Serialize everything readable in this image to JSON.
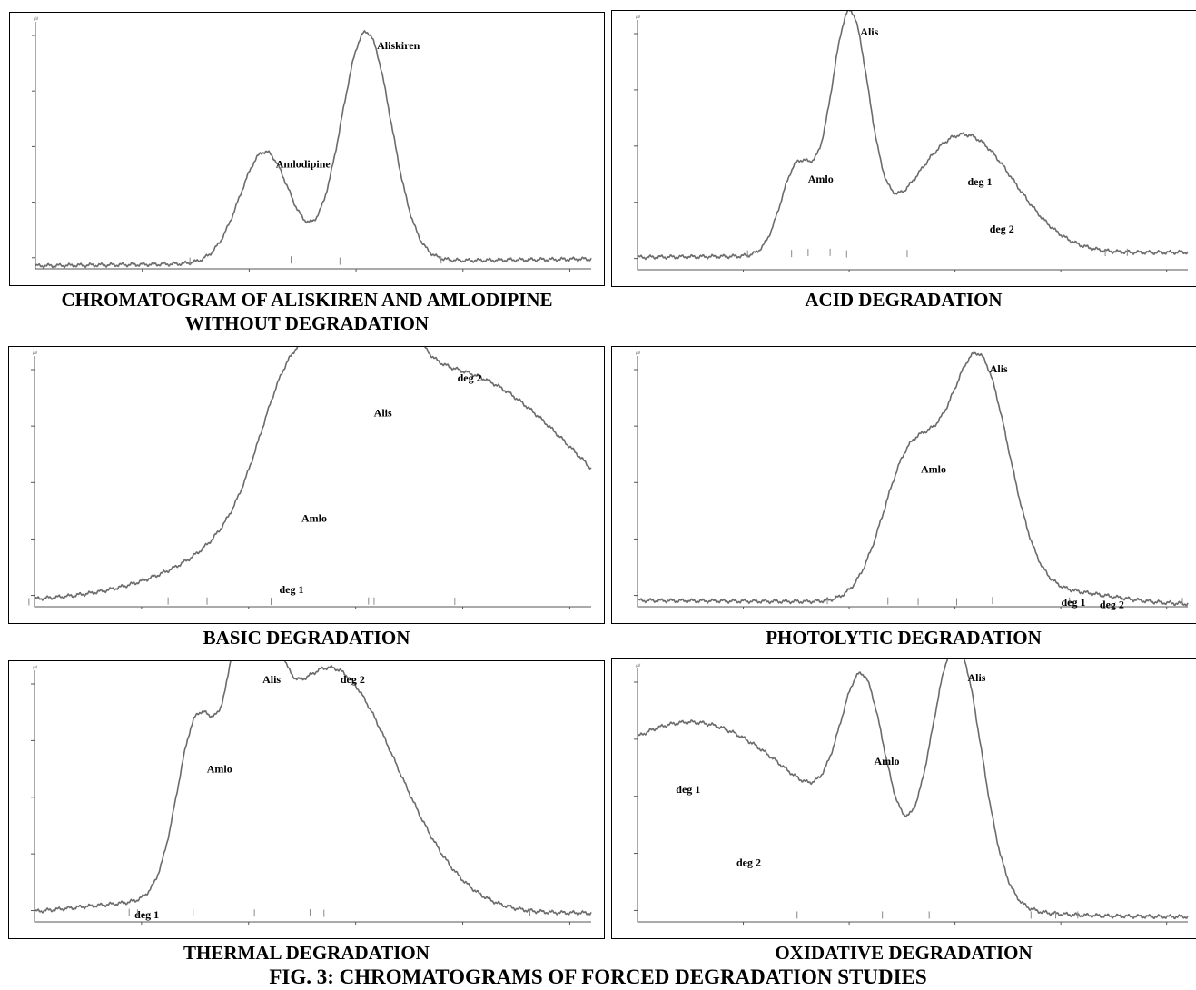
{
  "figure_caption": "FIG. 3: CHROMATOGRAMS OF FORCED DEGRADATION STUDIES",
  "colors": {
    "trace": "#6b6b6b",
    "frame": "#000000"
  },
  "chart_data": [
    {
      "id": "without-degradation",
      "type": "line",
      "caption_lines": [
        "CHROMATOGRAM OF ALISKIREN AND AMLODIPINE",
        "WITHOUT DEGRADATION"
      ],
      "ylabel": "µV",
      "xlabel": "",
      "xlim": [
        0,
        10
      ],
      "ylim": [
        0,
        10
      ],
      "baseline": 0.12,
      "baseline_end": 0.4,
      "peaks": [
        {
          "label": "Amlodipine",
          "x": 4.13,
          "height": 4.5,
          "width": 0.045
        },
        {
          "label": "Aliskiren",
          "x": 5.95,
          "height": 9.3,
          "width": 0.045
        }
      ]
    },
    {
      "id": "acid-degradation",
      "type": "line",
      "caption_lines": [
        "ACID DEGRADATION"
      ],
      "ylabel": "µV",
      "xlabel": "",
      "xlim": [
        0,
        10
      ],
      "ylim": [
        0,
        10
      ],
      "baseline": 0.5,
      "baseline_end": 0.7,
      "peaks": [
        {
          "label": "Amlo",
          "x": 2.9,
          "height": 3.5,
          "width": 0.03
        },
        {
          "label": "Alis",
          "x": 3.85,
          "height": 9.4,
          "width": 0.035
        },
        {
          "label": "deg 1",
          "x": 5.8,
          "height": 3.4,
          "width": 0.09
        },
        {
          "label": "deg 2",
          "x": 6.2,
          "height": 1.5,
          "width": 0.09
        }
      ]
    },
    {
      "id": "basic-degradation",
      "type": "line",
      "caption_lines": [
        "BASIC DEGRADATION"
      ],
      "ylabel": "µV",
      "xlabel": "",
      "xlim": [
        0,
        10
      ],
      "ylim": [
        0,
        10
      ],
      "baseline": 0.2,
      "baseline_end": 0.1,
      "peaks": [
        {
          "label": "deg 1",
          "x": 4.2,
          "height": 0.85,
          "width": 0.06
        },
        {
          "label": "Amlo",
          "x": 4.6,
          "height": 3.7,
          "width": 0.05
        },
        {
          "label": "Alis",
          "x": 5.9,
          "height": 7.9,
          "width": 0.055
        },
        {
          "label": "deg 2",
          "x": 7.4,
          "height": 9.3,
          "width": 0.25
        }
      ]
    },
    {
      "id": "photolytic-degradation",
      "type": "line",
      "caption_lines": [
        "PHOTOLYTIC DEGRADATION"
      ],
      "ylabel": "µV",
      "xlabel": "",
      "xlim": [
        0,
        10
      ],
      "ylim": [
        0,
        10
      ],
      "baseline": 0.25,
      "baseline_end": 0.1,
      "peaks": [
        {
          "label": "Amlo",
          "x": 4.95,
          "height": 5.6,
          "width": 0.05
        },
        {
          "label": "Alis",
          "x": 6.2,
          "height": 9.6,
          "width": 0.055
        },
        {
          "label": "deg 1",
          "x": 7.5,
          "height": 0.3,
          "width": 0.08
        },
        {
          "label": "deg 2",
          "x": 8.2,
          "height": 0.2,
          "width": 0.08
        }
      ]
    },
    {
      "id": "thermal-degradation",
      "type": "line",
      "caption_lines": [
        "THERMAL DEGRADATION"
      ],
      "ylabel": "µV",
      "xlabel": "",
      "xlim": [
        0,
        10
      ],
      "ylim": [
        0,
        10
      ],
      "baseline": 0.25,
      "baseline_end": 0.35,
      "peaks": [
        {
          "label": "deg 1",
          "x": 1.6,
          "height": 0.4,
          "width": 0.12
        },
        {
          "label": "Amlo",
          "x": 2.9,
          "height": 6.2,
          "width": 0.035
        },
        {
          "label": "Alis",
          "x": 3.9,
          "height": 9.8,
          "width": 0.035
        },
        {
          "label": "deg 2",
          "x": 5.3,
          "height": 9.8,
          "width": 0.12
        }
      ]
    },
    {
      "id": "oxidative-degradation",
      "type": "line",
      "caption_lines": [
        "OXIDATIVE DEGRADATION"
      ],
      "ylabel": "µV",
      "xlabel": "",
      "xlim": [
        0,
        10
      ],
      "ylim": [
        0,
        10
      ],
      "baseline": 0.2,
      "baseline_end": 0.2,
      "peaks": [
        {
          "label": "deg 1",
          "x": 0.5,
          "height": 5.4,
          "width": 0.25
        },
        {
          "label": "deg 2",
          "x": 1.6,
          "height": 2.5,
          "width": 0.2
        },
        {
          "label": "Amlo",
          "x": 4.1,
          "height": 6.5,
          "width": 0.04
        },
        {
          "label": "Alis",
          "x": 5.8,
          "height": 9.9,
          "width": 0.045
        }
      ]
    }
  ]
}
